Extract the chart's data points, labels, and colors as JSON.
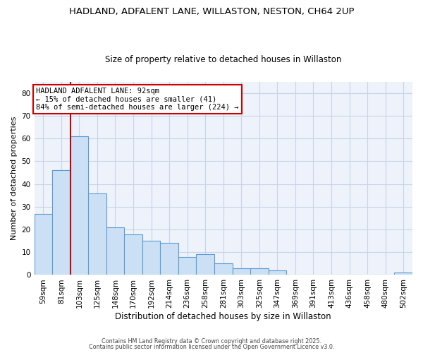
{
  "title1": "HADLAND, ADFALENT LANE, WILLASTON, NESTON, CH64 2UP",
  "title2": "Size of property relative to detached houses in Willaston",
  "xlabel": "Distribution of detached houses by size in Willaston",
  "ylabel": "Number of detached properties",
  "categories": [
    "59sqm",
    "81sqm",
    "103sqm",
    "125sqm",
    "148sqm",
    "170sqm",
    "192sqm",
    "214sqm",
    "236sqm",
    "258sqm",
    "281sqm",
    "303sqm",
    "325sqm",
    "347sqm",
    "369sqm",
    "391sqm",
    "413sqm",
    "436sqm",
    "458sqm",
    "480sqm",
    "502sqm"
  ],
  "values": [
    27,
    46,
    61,
    36,
    21,
    18,
    15,
    14,
    8,
    9,
    5,
    3,
    3,
    2,
    0,
    0,
    0,
    0,
    0,
    0,
    1
  ],
  "bar_color": "#cce0f5",
  "bar_edge_color": "#5b9bd5",
  "grid_color": "#c8d4e8",
  "bg_color": "#ffffff",
  "plot_bg_color": "#eef2fa",
  "ylim": [
    0,
    85
  ],
  "yticks": [
    0,
    10,
    20,
    30,
    40,
    50,
    60,
    70,
    80
  ],
  "annotation_text": "HADLAND ADFALENT LANE: 92sqm\n← 15% of detached houses are smaller (41)\n84% of semi-detached houses are larger (224) →",
  "annotation_box_color": "#ffffff",
  "annotation_box_edge": "#cc0000",
  "vline_x": 1.5,
  "vline_color": "#cc0000",
  "footnote1": "Contains HM Land Registry data © Crown copyright and database right 2025.",
  "footnote2": "Contains public sector information licensed under the Open Government Licence v3.0.",
  "title1_fontsize": 9.5,
  "title2_fontsize": 8.5,
  "xlabel_fontsize": 8.5,
  "ylabel_fontsize": 8,
  "tick_fontsize": 7.5,
  "annotation_fontsize": 7.5,
  "footnote_fontsize": 5.8
}
